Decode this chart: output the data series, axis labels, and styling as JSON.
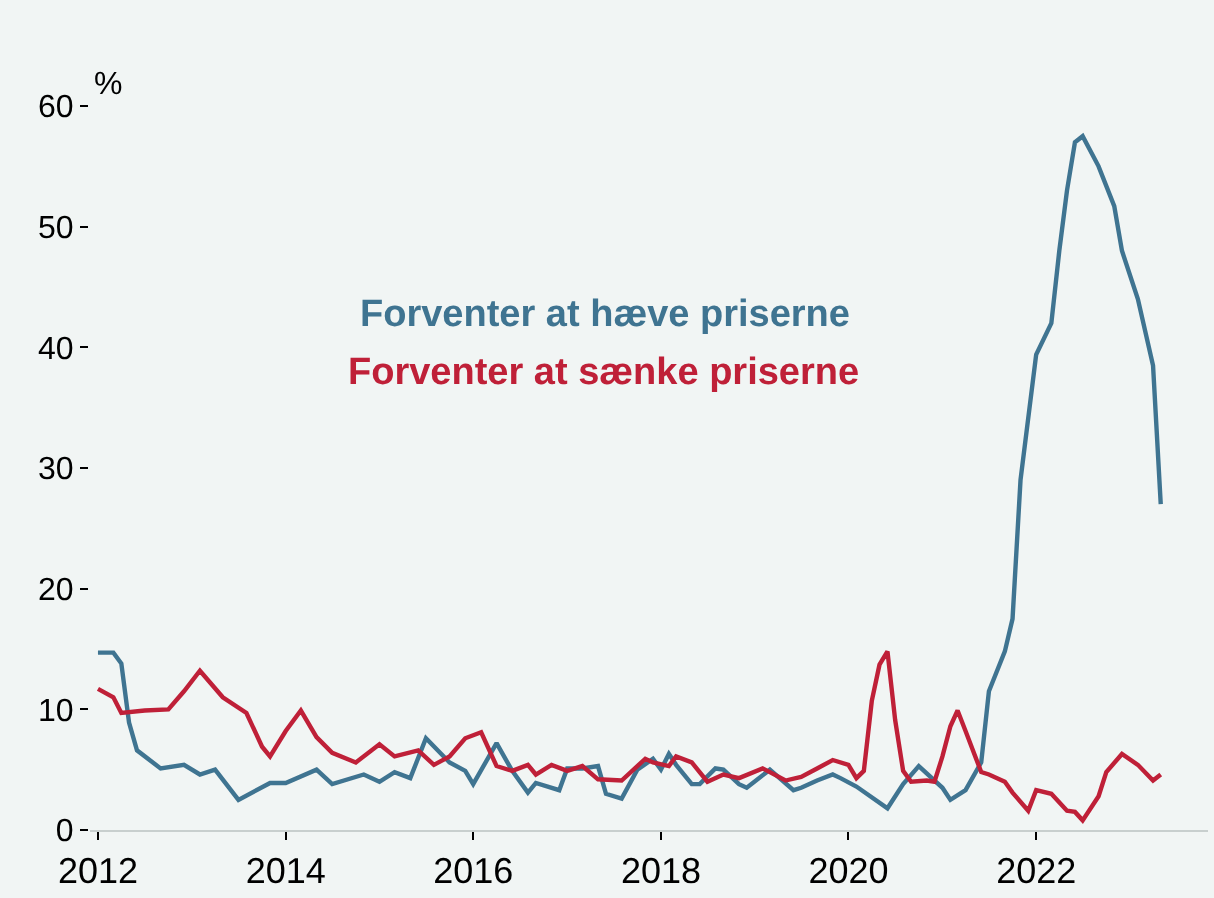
{
  "chart_data": {
    "type": "line",
    "ylabel": "%",
    "x": [
      "2012-01",
      "2012-03",
      "2012-04",
      "2012-05",
      "2012-06",
      "2012-09",
      "2012-12",
      "2013-02",
      "2013-04",
      "2013-07",
      "2013-11",
      "2014-01",
      "2014-05",
      "2014-07",
      "2014-11",
      "2015-01",
      "2015-03",
      "2015-05",
      "2015-07",
      "2015-10",
      "2015-12",
      "2016-01",
      "2016-04",
      "2016-06",
      "2016-08",
      "2016-09",
      "2016-12",
      "2017-01",
      "2017-03",
      "2017-05",
      "2017-06",
      "2017-08",
      "2017-10",
      "2017-12",
      "2018-01",
      "2018-02",
      "2018-03",
      "2018-05",
      "2018-06",
      "2018-08",
      "2018-09",
      "2018-11",
      "2018-12",
      "2019-03",
      "2019-06",
      "2019-07",
      "2019-09",
      "2019-11",
      "2019-12",
      "2020-02",
      "2020-06",
      "2020-08",
      "2020-10",
      "2021-01",
      "2021-02",
      "2021-04",
      "2021-06",
      "2021-07",
      "2021-09",
      "2021-10",
      "2021-11",
      "2022-01",
      "2022-03",
      "2022-04",
      "2022-05",
      "2022-06",
      "2022-07",
      "2022-09",
      "2022-11",
      "2022-12",
      "2023-02",
      "2023-04",
      "2023-05"
    ],
    "series": [
      {
        "name": "Forventer at hæve priserne",
        "color": "#3f7491",
        "values": [
          14.7,
          14.7,
          13.8,
          8.9,
          6.6,
          5.1,
          5.4,
          4.6,
          5,
          2.5,
          3.9,
          3.9,
          5,
          3.8,
          4.6,
          4,
          4.8,
          4.3,
          7.6,
          5.6,
          4.9,
          3.8,
          7.2,
          4.9,
          3.1,
          3.9,
          3.3,
          5.1,
          5.1,
          5.3,
          3,
          2.6,
          5,
          5.9,
          5,
          6.3,
          5.4,
          3.8,
          3.8,
          5.1,
          5,
          3.8,
          3.5,
          5,
          3.3,
          3.5,
          4.1,
          4.6,
          4.3,
          3.6,
          1.8,
          3.8,
          5.3,
          3.5,
          2.5,
          3.3,
          5.6,
          11.5,
          14.8,
          17.5,
          29,
          39.4,
          42,
          48,
          53,
          57,
          57.5,
          55,
          51.7,
          48,
          44,
          38.5,
          27
        ]
      },
      {
        "name": "Forventer at sænke priserne",
        "color": "#bf2038",
        "x": [
          "2012-01",
          "2012-03",
          "2012-04",
          "2012-07",
          "2012-10",
          "2012-12",
          "2013-02",
          "2013-05",
          "2013-08",
          "2013-10",
          "2013-11",
          "2014-01",
          "2014-03",
          "2014-05",
          "2014-07",
          "2014-10",
          "2015-01",
          "2015-03",
          "2015-06",
          "2015-08",
          "2015-10",
          "2015-12",
          "2016-02",
          "2016-04",
          "2016-06",
          "2016-08",
          "2016-09",
          "2016-11",
          "2017-01",
          "2017-03",
          "2017-05",
          "2017-08",
          "2017-11",
          "2017-12",
          "2018-02",
          "2018-03",
          "2018-05",
          "2018-07",
          "2018-09",
          "2018-11",
          "2019-02",
          "2019-03",
          "2019-05",
          "2019-07",
          "2019-09",
          "2019-11",
          "2020-01",
          "2020-02",
          "2020-03",
          "2020-04",
          "2020-05",
          "2020-06",
          "2020-07",
          "2020-08",
          "2020-09",
          "2020-11",
          "2020-12",
          "2021-01",
          "2021-02",
          "2021-03",
          "2021-04",
          "2021-06",
          "2021-07",
          "2021-09",
          "2021-10",
          "2021-12",
          "2022-01",
          "2022-03",
          "2022-05",
          "2022-06",
          "2022-07",
          "2022-09",
          "2022-10",
          "2022-12",
          "2023-02",
          "2023-04",
          "2023-05"
        ],
        "values": [
          11.7,
          11,
          9.7,
          9.9,
          10,
          11.5,
          13.2,
          11,
          9.7,
          6.9,
          6.1,
          8.2,
          9.9,
          7.7,
          6.4,
          5.6,
          7.1,
          6.1,
          6.6,
          5.4,
          6.1,
          7.6,
          8.1,
          5.3,
          4.9,
          5.4,
          4.6,
          5.4,
          4.9,
          5.3,
          4.2,
          4.1,
          5.9,
          5.6,
          5.3,
          6.1,
          5.6,
          4,
          4.6,
          4.3,
          5.1,
          4.8,
          4.1,
          4.4,
          5.1,
          5.8,
          5.4,
          4.3,
          4.9,
          10.7,
          13.7,
          14.8,
          9.1,
          4.9,
          4,
          4.1,
          4,
          6.1,
          8.6,
          9.9,
          8.2,
          4.8,
          4.6,
          4,
          3.1,
          1.6,
          3.3,
          3,
          1.6,
          1.5,
          0.8,
          2.8,
          4.8,
          6.3,
          5.4,
          4.1,
          4.6
        ]
      }
    ],
    "xticks": [
      {
        "value": "2012-01",
        "label": "2012"
      },
      {
        "value": "2014-01",
        "label": "2014"
      },
      {
        "value": "2016-01",
        "label": "2016"
      },
      {
        "value": "2018-01",
        "label": "2018"
      },
      {
        "value": "2020-01",
        "label": "2020"
      },
      {
        "value": "2022-01",
        "label": "2022"
      }
    ],
    "xlim": [
      "2011-12",
      "2023-11"
    ],
    "ylim": [
      0,
      60
    ],
    "yticks": [
      0,
      10,
      20,
      30,
      40,
      50,
      60
    ],
    "grid": false,
    "marker": "none",
    "line_style": "solid"
  }
}
